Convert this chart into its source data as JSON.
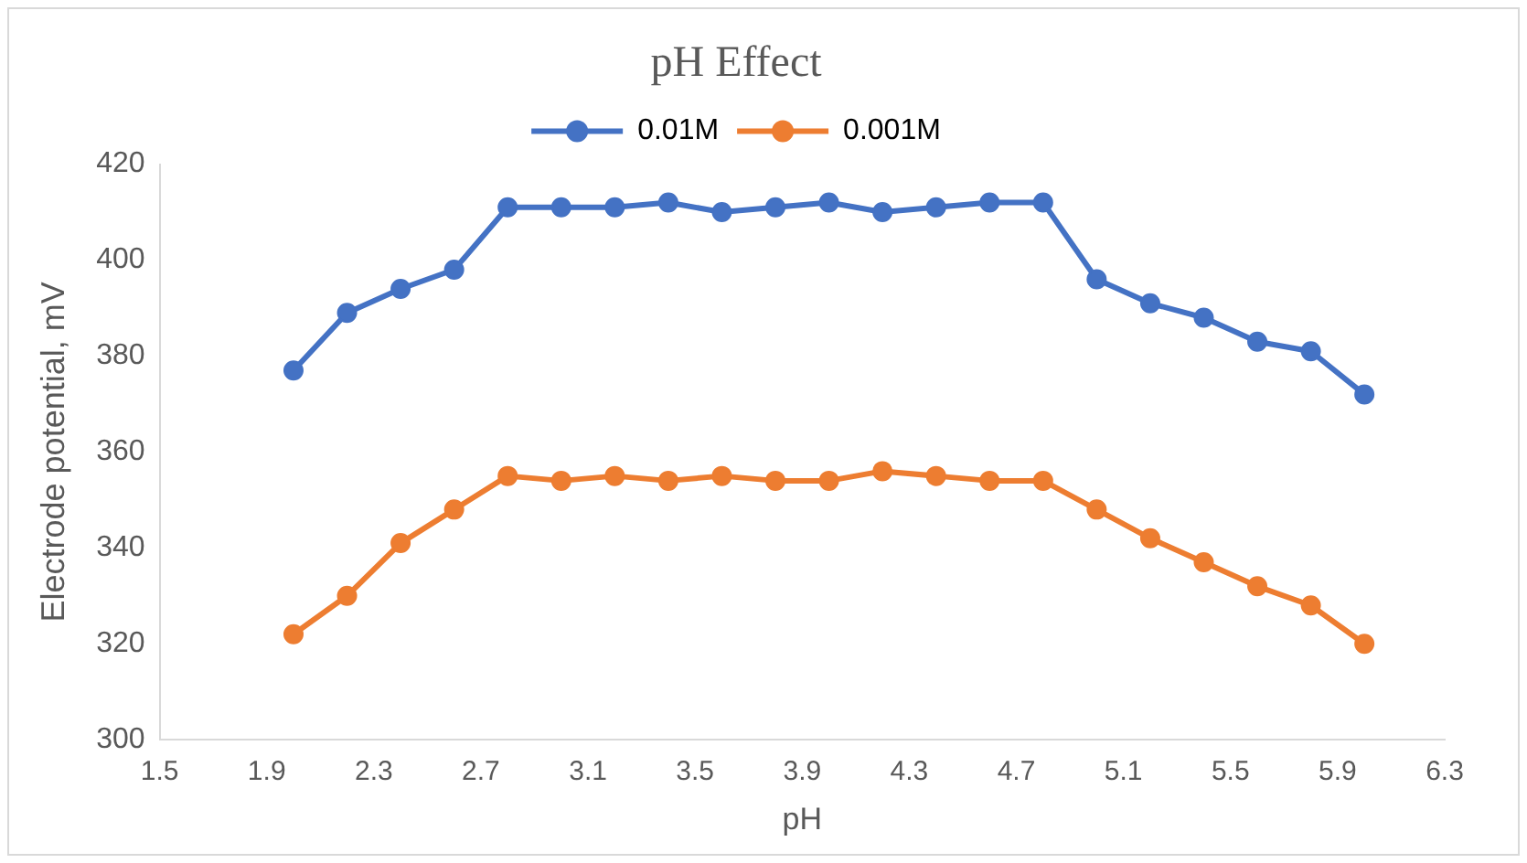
{
  "chart_data": {
    "type": "line",
    "title": "pH Effect",
    "xlabel": "pH",
    "ylabel": "Electrode potential, mV",
    "x": [
      2.0,
      2.2,
      2.4,
      2.6,
      2.8,
      3.0,
      3.2,
      3.4,
      3.6,
      3.8,
      4.0,
      4.2,
      4.4,
      4.6,
      4.8,
      5.0,
      5.2,
      5.4,
      5.6,
      5.8,
      6.0
    ],
    "series": [
      {
        "name": "0.01M",
        "color": "#4472c4",
        "values": [
          377,
          389,
          394,
          398,
          411,
          411,
          411,
          412,
          410,
          411,
          412,
          410,
          411,
          412,
          412,
          396,
          391,
          388,
          383,
          381,
          372
        ]
      },
      {
        "name": "0.001M",
        "color": "#ed7d31",
        "values": [
          322,
          330,
          341,
          348,
          355,
          354,
          355,
          354,
          355,
          354,
          354,
          356,
          355,
          354,
          354,
          348,
          342,
          337,
          332,
          328,
          320
        ]
      }
    ],
    "xlim": [
      1.5,
      6.3
    ],
    "xticks": [
      1.5,
      1.9,
      2.3,
      2.7,
      3.1,
      3.5,
      3.9,
      4.3,
      4.7,
      5.1,
      5.5,
      5.9,
      6.3
    ],
    "ylim": [
      300,
      420
    ],
    "yticks": [
      300,
      320,
      340,
      360,
      380,
      400,
      420
    ],
    "grid": false,
    "legend": "top",
    "marker": "circle",
    "line_style": "solid"
  }
}
